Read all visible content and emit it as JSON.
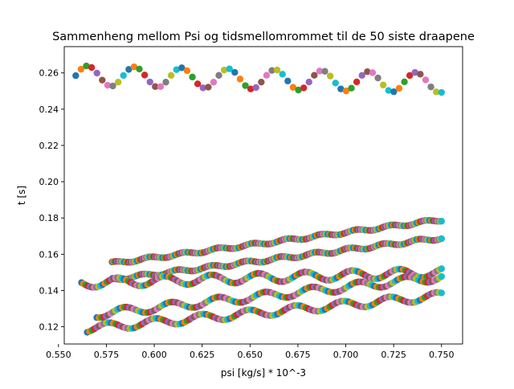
{
  "chart_data": {
    "type": "scatter",
    "title": "Sammenheng mellom Psi og tidsmellomrommet til de 50 siste draapene",
    "xlabel": "psi [kg/s] * 10^-3",
    "ylabel": "t [s]",
    "xlim": [
      0.553,
      0.761
    ],
    "ylim": [
      0.1105,
      0.2745
    ],
    "xticks": [
      "0.550",
      "0.575",
      "0.600",
      "0.625",
      "0.650",
      "0.675",
      "0.700",
      "0.725",
      "0.750"
    ],
    "yticks": [
      "0.12",
      "0.14",
      "0.16",
      "0.18",
      "0.20",
      "0.22",
      "0.24",
      "0.26"
    ],
    "grid": false,
    "legend": "none",
    "palette": [
      "#1f77b4",
      "#ff7f0e",
      "#2ca02c",
      "#d62728",
      "#9467bd",
      "#8c564b",
      "#e377c2",
      "#7f7f7f",
      "#bcbd22",
      "#17becf"
    ],
    "series": [
      {
        "x_start": 0.559,
        "x_end": 0.75,
        "points": 70,
        "y_base": [
          0.2585,
          0.2545
        ],
        "wave": {
          "amplitude": 0.0055,
          "period": 0.0245,
          "phase": 0.0
        }
      },
      {
        "x_start": 0.578,
        "x_end": 0.75,
        "points": 260,
        "y_base": [
          0.155,
          0.179
        ],
        "wave": {
          "amplitude": 0.0008,
          "period": 0.018,
          "phase": 1.1
        }
      },
      {
        "x_start": 0.578,
        "x_end": 0.75,
        "points": 260,
        "y_base": [
          0.146,
          0.169
        ],
        "wave": {
          "amplitude": 0.0009,
          "period": 0.018,
          "phase": 2.3
        }
      },
      {
        "x_start": 0.562,
        "x_end": 0.75,
        "points": 170,
        "y_base": [
          0.144,
          0.15
        ],
        "wave": {
          "amplitude": 0.0025,
          "period": 0.0245,
          "phase": 3.0
        }
      },
      {
        "x_start": 0.57,
        "x_end": 0.75,
        "points": 150,
        "y_base": [
          0.127,
          0.1475
        ],
        "wave": {
          "amplitude": 0.0022,
          "period": 0.0245,
          "phase": 4.2
        }
      },
      {
        "x_start": 0.565,
        "x_end": 0.75,
        "points": 150,
        "y_base": [
          0.119,
          0.137
        ],
        "wave": {
          "amplitude": 0.0022,
          "period": 0.0245,
          "phase": 5.1
        }
      }
    ]
  }
}
